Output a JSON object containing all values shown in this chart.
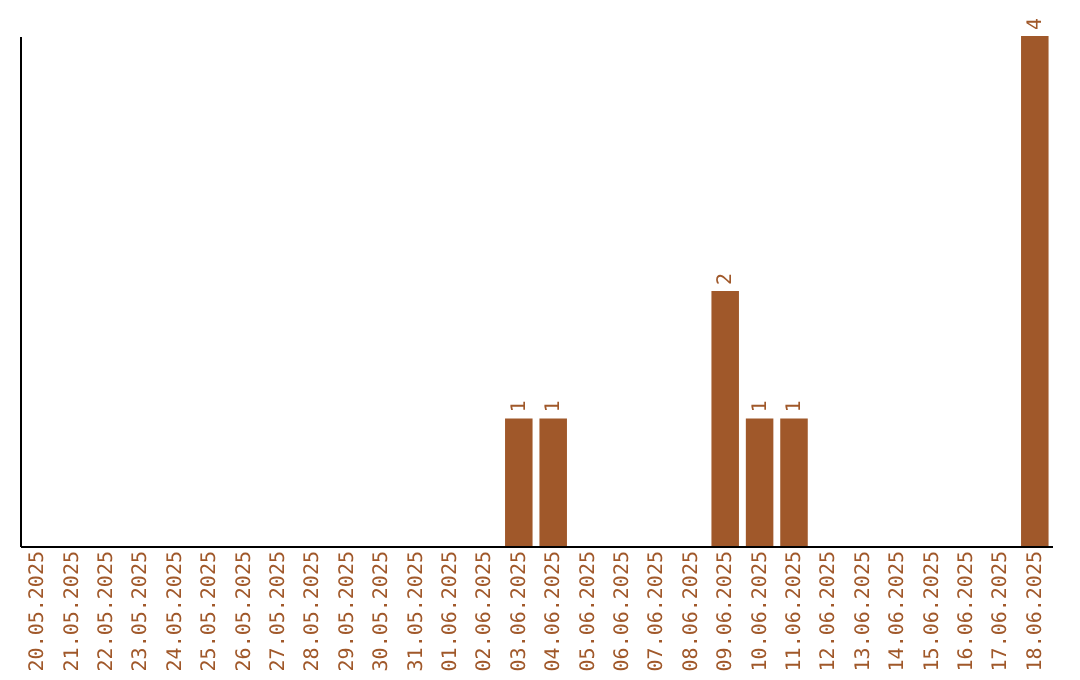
{
  "chart_data": {
    "type": "bar",
    "categories": [
      "20.05.2025",
      "21.05.2025",
      "22.05.2025",
      "23.05.2025",
      "24.05.2025",
      "25.05.2025",
      "26.05.2025",
      "27.05.2025",
      "28.05.2025",
      "29.05.2025",
      "30.05.2025",
      "31.05.2025",
      "01.06.2025",
      "02.06.2025",
      "03.06.2025",
      "04.06.2025",
      "05.06.2025",
      "06.06.2025",
      "07.06.2025",
      "08.06.2025",
      "09.06.2025",
      "10.06.2025",
      "11.06.2025",
      "12.06.2025",
      "13.06.2025",
      "14.06.2025",
      "15.06.2025",
      "16.06.2025",
      "17.06.2025",
      "18.06.2025"
    ],
    "values": [
      null,
      null,
      null,
      null,
      null,
      null,
      null,
      null,
      null,
      null,
      null,
      null,
      null,
      null,
      1,
      1,
      null,
      null,
      null,
      null,
      2,
      1,
      1,
      null,
      null,
      null,
      null,
      null,
      null,
      4
    ],
    "data_labels": true,
    "ylim": [
      0,
      4
    ],
    "color": "#a0582a",
    "tick_labels": "x",
    "grid": false
  }
}
